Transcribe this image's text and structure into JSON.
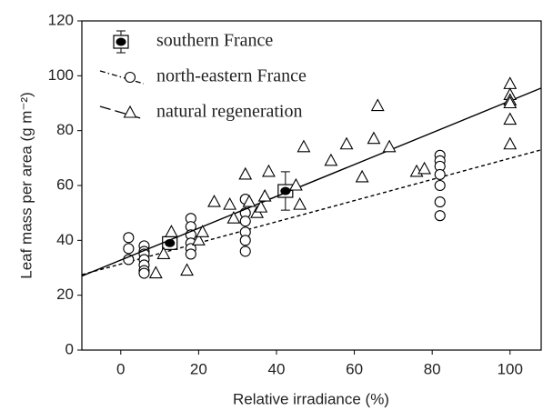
{
  "chart_data": {
    "type": "scatter",
    "xlabel": "Relative irradiance (%)",
    "ylabel": "Leaf mass per area (g m⁻²)",
    "xlim": [
      -10,
      108
    ],
    "ylim": [
      0,
      120
    ],
    "xticks": [
      0,
      20,
      40,
      60,
      80,
      100
    ],
    "yticks": [
      0,
      20,
      40,
      60,
      80,
      100,
      120
    ],
    "grid": false,
    "legend": "upper left",
    "series": [
      {
        "name": "southern France",
        "marker": "filled-circle-square",
        "color": "#000000",
        "x": [
          12.6,
          42.3
        ],
        "values": [
          39,
          58
        ],
        "errors": [
          2,
          7
        ]
      },
      {
        "name": "north-eastern France",
        "marker": "circle",
        "color": "#000000",
        "line": "dashed",
        "x": [
          2,
          2,
          2,
          6,
          6,
          6,
          6,
          6,
          6,
          6,
          18,
          18,
          18,
          18,
          18,
          18,
          32,
          32,
          32,
          32,
          32,
          32,
          82,
          82,
          82,
          82,
          82,
          82,
          82
        ],
        "values": [
          41,
          37,
          33,
          38,
          36,
          35,
          33,
          31,
          29,
          28,
          48,
          45,
          42,
          39,
          37,
          35,
          55,
          50,
          47,
          43,
          40,
          36,
          71,
          69,
          67,
          64,
          60,
          54,
          49
        ],
        "fit_x": [
          -10,
          108
        ],
        "fit_y": [
          27.5,
          73
        ]
      },
      {
        "name": "natural regeneration",
        "marker": "triangle",
        "color": "#000000",
        "line": "solid",
        "x": [
          9,
          11,
          13,
          17,
          20,
          21,
          24,
          28,
          29,
          32,
          33,
          35,
          36,
          37,
          38,
          45,
          46,
          47,
          54,
          58,
          62,
          65,
          66,
          69,
          76,
          78,
          100,
          100,
          100,
          100,
          100,
          100
        ],
        "values": [
          28,
          35,
          43,
          29,
          40,
          43,
          54,
          53,
          48,
          64,
          54,
          50,
          52,
          56,
          65,
          60,
          53,
          74,
          69,
          75,
          63,
          77,
          89,
          74,
          65,
          66,
          97,
          93,
          91,
          90,
          84,
          75
        ],
        "fit_x": [
          -10,
          108
        ],
        "fit_y": [
          27,
          95.5
        ]
      }
    ]
  }
}
